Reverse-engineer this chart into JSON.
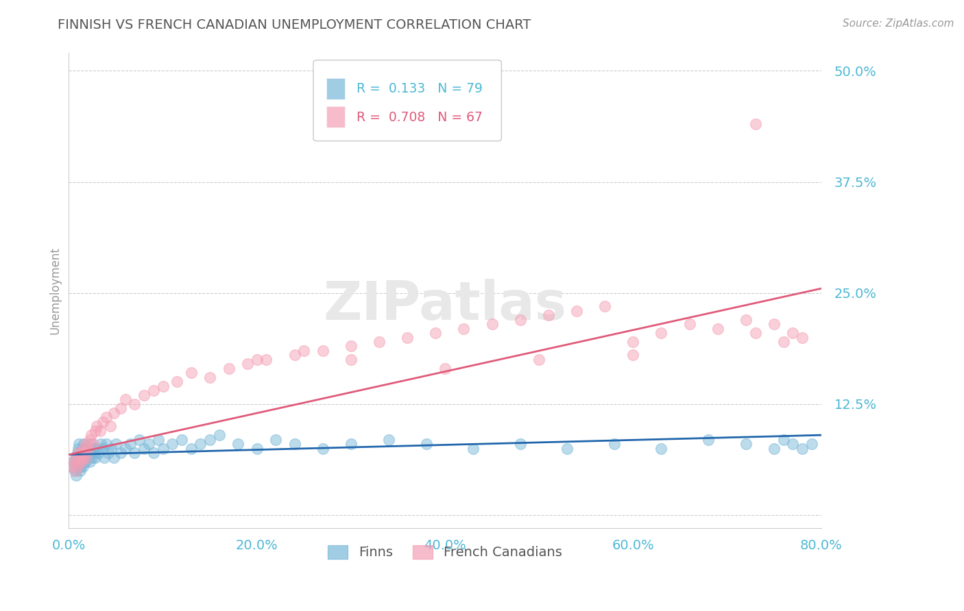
{
  "title": "FINNISH VS FRENCH CANADIAN UNEMPLOYMENT CORRELATION CHART",
  "source": "Source: ZipAtlas.com",
  "ylabel": "Unemployment",
  "xmin": 0.0,
  "xmax": 0.8,
  "ymin": -0.015,
  "ymax": 0.52,
  "yticks": [
    0.0,
    0.125,
    0.25,
    0.375,
    0.5
  ],
  "ytick_labels": [
    "",
    "12.5%",
    "25.0%",
    "37.5%",
    "50.0%"
  ],
  "xticks": [
    0.0,
    0.2,
    0.4,
    0.6,
    0.8
  ],
  "xtick_labels": [
    "0.0%",
    "20.0%",
    "40.0%",
    "60.0%",
    "80.0%"
  ],
  "finns_R": 0.133,
  "finns_N": 79,
  "french_R": 0.708,
  "french_N": 67,
  "blue_color": "#7ab8d9",
  "pink_color": "#f4a0b5",
  "blue_line_color": "#2166ac",
  "pink_line_color": "#e05a7a",
  "title_color": "#555555",
  "axis_label_color": "#4db8d4",
  "watermark": "ZIPatlas",
  "background_color": "#ffffff",
  "grid_color": "#cccccc",
  "finns_x": [
    0.003,
    0.005,
    0.006,
    0.007,
    0.008,
    0.009,
    0.01,
    0.01,
    0.011,
    0.011,
    0.012,
    0.012,
    0.013,
    0.013,
    0.014,
    0.014,
    0.015,
    0.015,
    0.016,
    0.016,
    0.017,
    0.017,
    0.018,
    0.019,
    0.02,
    0.021,
    0.022,
    0.023,
    0.024,
    0.025,
    0.026,
    0.027,
    0.028,
    0.03,
    0.032,
    0.034,
    0.036,
    0.038,
    0.04,
    0.042,
    0.045,
    0.048,
    0.05,
    0.055,
    0.06,
    0.065,
    0.07,
    0.075,
    0.08,
    0.085,
    0.09,
    0.095,
    0.1,
    0.11,
    0.12,
    0.13,
    0.14,
    0.15,
    0.16,
    0.18,
    0.2,
    0.22,
    0.24,
    0.27,
    0.3,
    0.34,
    0.38,
    0.43,
    0.48,
    0.53,
    0.58,
    0.63,
    0.68,
    0.72,
    0.75,
    0.76,
    0.77,
    0.78,
    0.79
  ],
  "finns_y": [
    0.055,
    0.06,
    0.05,
    0.065,
    0.045,
    0.07,
    0.055,
    0.075,
    0.06,
    0.08,
    0.05,
    0.065,
    0.055,
    0.07,
    0.06,
    0.075,
    0.055,
    0.07,
    0.06,
    0.08,
    0.065,
    0.075,
    0.06,
    0.07,
    0.065,
    0.075,
    0.06,
    0.08,
    0.07,
    0.065,
    0.075,
    0.07,
    0.065,
    0.075,
    0.07,
    0.08,
    0.075,
    0.065,
    0.08,
    0.07,
    0.075,
    0.065,
    0.08,
    0.07,
    0.075,
    0.08,
    0.07,
    0.085,
    0.075,
    0.08,
    0.07,
    0.085,
    0.075,
    0.08,
    0.085,
    0.075,
    0.08,
    0.085,
    0.09,
    0.08,
    0.075,
    0.085,
    0.08,
    0.075,
    0.08,
    0.085,
    0.08,
    0.075,
    0.08,
    0.075,
    0.08,
    0.075,
    0.085,
    0.08,
    0.075,
    0.085,
    0.08,
    0.075,
    0.08
  ],
  "french_x": [
    0.003,
    0.005,
    0.007,
    0.008,
    0.009,
    0.01,
    0.011,
    0.012,
    0.013,
    0.014,
    0.015,
    0.016,
    0.017,
    0.018,
    0.019,
    0.02,
    0.022,
    0.024,
    0.026,
    0.028,
    0.03,
    0.033,
    0.036,
    0.04,
    0.044,
    0.048,
    0.055,
    0.06,
    0.07,
    0.08,
    0.09,
    0.1,
    0.115,
    0.13,
    0.15,
    0.17,
    0.19,
    0.21,
    0.24,
    0.27,
    0.3,
    0.33,
    0.36,
    0.39,
    0.42,
    0.45,
    0.48,
    0.51,
    0.54,
    0.57,
    0.6,
    0.63,
    0.66,
    0.69,
    0.72,
    0.73,
    0.75,
    0.76,
    0.77,
    0.78,
    0.2,
    0.25,
    0.3,
    0.4,
    0.5,
    0.6,
    0.73
  ],
  "french_y": [
    0.055,
    0.06,
    0.05,
    0.065,
    0.055,
    0.07,
    0.06,
    0.065,
    0.07,
    0.06,
    0.065,
    0.075,
    0.07,
    0.08,
    0.065,
    0.075,
    0.085,
    0.09,
    0.08,
    0.095,
    0.1,
    0.095,
    0.105,
    0.11,
    0.1,
    0.115,
    0.12,
    0.13,
    0.125,
    0.135,
    0.14,
    0.145,
    0.15,
    0.16,
    0.155,
    0.165,
    0.17,
    0.175,
    0.18,
    0.185,
    0.19,
    0.195,
    0.2,
    0.205,
    0.21,
    0.215,
    0.22,
    0.225,
    0.23,
    0.235,
    0.195,
    0.205,
    0.215,
    0.21,
    0.22,
    0.205,
    0.215,
    0.195,
    0.205,
    0.2,
    0.175,
    0.185,
    0.175,
    0.165,
    0.175,
    0.18,
    0.44
  ],
  "blue_line_x": [
    0.0,
    0.8
  ],
  "blue_line_y": [
    0.068,
    0.09
  ],
  "pink_line_x": [
    0.0,
    0.8
  ],
  "pink_line_y": [
    0.068,
    0.255
  ]
}
